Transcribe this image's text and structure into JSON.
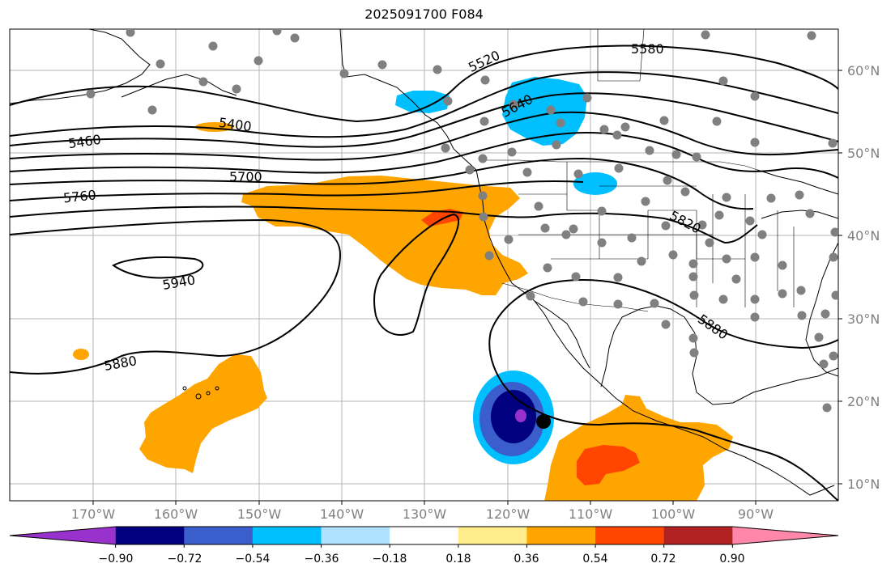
{
  "title": "2025091700 F084",
  "lat_labels": [
    "60°N",
    "50°N",
    "40°N",
    "30°N",
    "20°N",
    "10°N"
  ],
  "lon_labels": [
    "170°W",
    "160°W",
    "150°W",
    "140°W",
    "130°W",
    "120°W",
    "110°W",
    "100°W",
    "90°W"
  ],
  "contour_labels": [
    "5520",
    "5580",
    "5640",
    "5400",
    "5460",
    "5700",
    "5760",
    "5820",
    "5940",
    "5880",
    "5880"
  ],
  "colorbar": {
    "ticks": [
      "−0.90",
      "−0.72",
      "−0.54",
      "−0.36",
      "−0.18",
      "0.18",
      "0.36",
      "0.54",
      "0.72",
      "0.90"
    ],
    "colors": [
      "#9932cc",
      "#000080",
      "#3a5fcd",
      "#00bfff",
      "#b0e2ff",
      "#ffffff",
      "#ffec8b",
      "#ffa500",
      "#ff4500",
      "#b22222",
      "#ff88aa"
    ]
  },
  "fill_colors": {
    "orange": "#ffa500",
    "red_orange": "#ff4500",
    "deep_sky": "#00bfff",
    "royal": "#3a5fcd",
    "navy": "#000080",
    "purple": "#9932cc",
    "station": "#808080"
  }
}
